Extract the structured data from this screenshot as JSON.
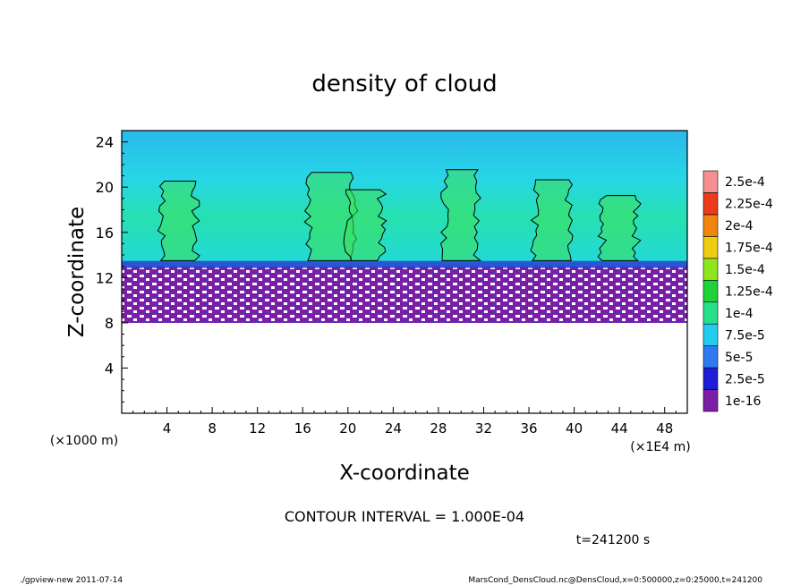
{
  "chart_data": {
    "type": "heatmap",
    "title": "density of cloud",
    "xlabel": "X-coordinate",
    "ylabel": "Z-coordinate",
    "x_unit_left": "(×1000 m)",
    "x_unit_right": "(×1E4 m)",
    "xlim": [
      0,
      50
    ],
    "ylim": [
      0,
      25
    ],
    "x_ticks": [
      "4",
      "8",
      "12",
      "16",
      "20",
      "24",
      "28",
      "32",
      "36",
      "40",
      "44",
      "48"
    ],
    "y_ticks": [
      "4",
      "8",
      "12",
      "16",
      "20",
      "24"
    ],
    "colorbar": {
      "labels": [
        "1e-16",
        "2.5e-5",
        "5e-5",
        "7.5e-5",
        "1e-4",
        "1.25e-4",
        "1.5e-4",
        "1.75e-4",
        "2e-4",
        "2.25e-4",
        "2.5e-4"
      ],
      "colors": [
        "#7c1fa6",
        "#1e1ed8",
        "#2f7af0",
        "#22cdf0",
        "#26e08a",
        "#1fd23a",
        "#8ee61e",
        "#f0cc10",
        "#f0860e",
        "#ec3a1a",
        "#f49090"
      ]
    },
    "contour_interval": "CONTOUR INTERVAL = 1.000E-04",
    "time_label": "t=241200 s",
    "field": {
      "cloud_base_z": 8,
      "dense_layer_top_z": 13,
      "cloud_top_z": 22,
      "core_regions_x": [
        5,
        18.5,
        21.5,
        30,
        38,
        44
      ]
    }
  },
  "footer": {
    "left": "./gpview-new  2011-07-14",
    "right": "MarsCond_DensCloud.nc@DensCloud,x=0:500000,z=0:25000,t=241200"
  }
}
